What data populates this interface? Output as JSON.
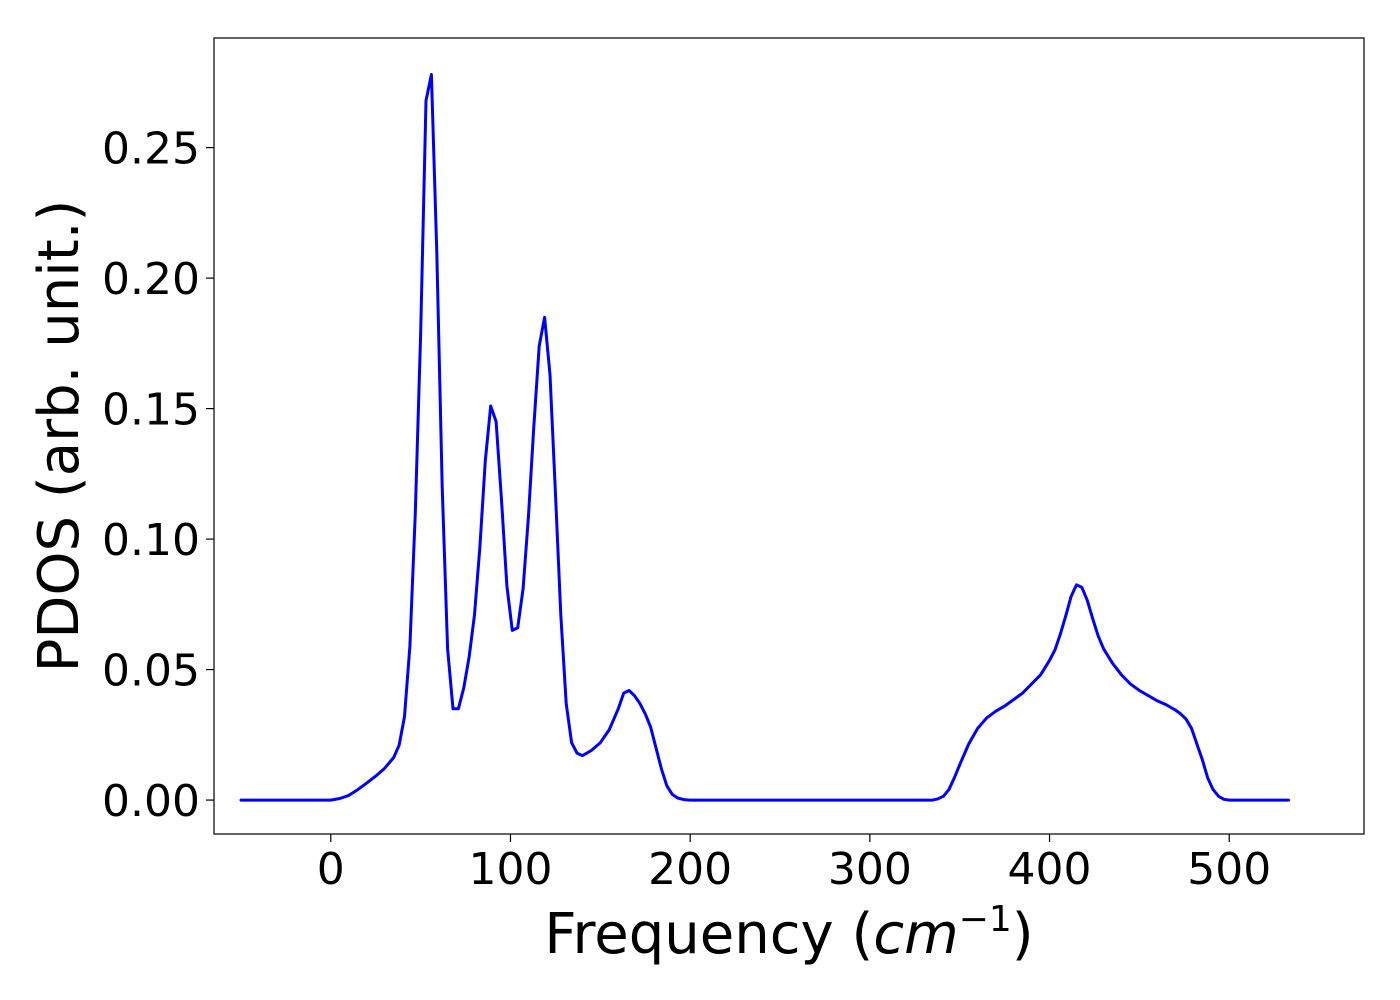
{
  "chart_data": {
    "type": "line",
    "title": "",
    "xlabel_prefix": "Frequency (",
    "xlabel_unit": "cm",
    "xlabel_exponent": "−1",
    "xlabel_suffix": ")",
    "ylabel": "PDOS (arb. unit.)",
    "xlim": [
      -65,
      575
    ],
    "ylim": [
      -0.013,
      0.292
    ],
    "x_ticks": [
      0,
      100,
      200,
      300,
      400,
      500
    ],
    "x_tick_labels": [
      "0",
      "100",
      "200",
      "300",
      "400",
      "500"
    ],
    "y_ticks": [
      0.0,
      0.05,
      0.1,
      0.15,
      0.2,
      0.25
    ],
    "y_tick_labels": [
      "0.00",
      "0.05",
      "0.10",
      "0.15",
      "0.20",
      "0.25"
    ],
    "grid": false,
    "series": [
      {
        "color": "#0000ff",
        "x": [
          -50,
          0,
          5,
          10,
          15,
          20,
          25,
          30,
          35,
          38,
          41,
          44,
          47,
          50,
          53,
          56,
          59,
          62,
          65,
          68,
          71,
          74,
          77,
          80,
          83,
          86,
          89,
          92,
          95,
          98,
          101,
          104,
          107,
          110,
          113,
          116,
          119,
          122,
          125,
          128,
          131,
          134,
          137,
          140,
          145,
          150,
          155,
          160,
          163,
          166,
          169,
          172,
          175,
          178,
          181,
          184,
          187,
          190,
          193,
          197,
          200,
          250,
          300,
          335,
          338,
          341,
          344,
          347,
          350,
          355,
          360,
          365,
          370,
          375,
          380,
          385,
          390,
          395,
          400,
          403,
          406,
          409,
          412,
          415,
          418,
          421,
          424,
          427,
          430,
          435,
          440,
          445,
          450,
          455,
          460,
          465,
          470,
          473,
          476,
          479,
          482,
          485,
          488,
          491,
          494,
          497,
          500,
          510,
          520,
          533
        ],
        "y": [
          0.0,
          0.0,
          0.0006,
          0.0018,
          0.004,
          0.0065,
          0.0092,
          0.0122,
          0.0163,
          0.021,
          0.032,
          0.059,
          0.11,
          0.178,
          0.268,
          0.278,
          0.21,
          0.12,
          0.058,
          0.035,
          0.035,
          0.043,
          0.055,
          0.071,
          0.097,
          0.13,
          0.151,
          0.145,
          0.115,
          0.082,
          0.065,
          0.066,
          0.081,
          0.109,
          0.143,
          0.174,
          0.185,
          0.163,
          0.118,
          0.071,
          0.037,
          0.022,
          0.018,
          0.017,
          0.019,
          0.022,
          0.027,
          0.035,
          0.041,
          0.042,
          0.04,
          0.037,
          0.033,
          0.028,
          0.02,
          0.012,
          0.0055,
          0.0022,
          0.0008,
          0.0001,
          0.0,
          0.0,
          0.0,
          0.0,
          0.0005,
          0.0015,
          0.004,
          0.0085,
          0.0135,
          0.0215,
          0.0275,
          0.0315,
          0.034,
          0.036,
          0.0385,
          0.041,
          0.0445,
          0.048,
          0.0535,
          0.0575,
          0.0635,
          0.0705,
          0.078,
          0.0825,
          0.0815,
          0.0765,
          0.0695,
          0.063,
          0.058,
          0.0525,
          0.048,
          0.0445,
          0.042,
          0.04,
          0.038,
          0.0365,
          0.0345,
          0.033,
          0.031,
          0.0275,
          0.0215,
          0.0155,
          0.0085,
          0.004,
          0.0015,
          0.0003,
          0.0,
          0.0,
          0.0,
          0.0
        ]
      }
    ]
  }
}
